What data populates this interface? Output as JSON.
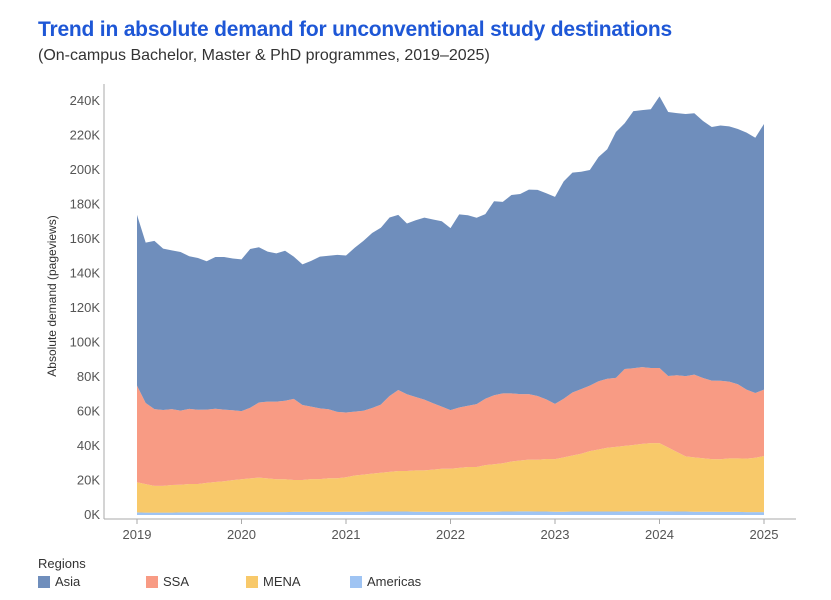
{
  "title": "Trend in absolute demand for unconventional study destinations",
  "subtitle": "(On-campus Bachelor, Master & PhD programmes, 2019–2025)",
  "legend_title": "Regions",
  "chart_data": {
    "type": "area",
    "stacked": true,
    "ylabel": "Absolute demand (pageviews)",
    "xlabel": "",
    "xlim": [
      2019,
      2025
    ],
    "ylim": [
      0,
      240000
    ],
    "x_ticks": [
      "2019",
      "2020",
      "2021",
      "2022",
      "2023",
      "2024",
      "2025"
    ],
    "y_ticks": [
      "0K",
      "20K",
      "40K",
      "60K",
      "80K",
      "100K",
      "120K",
      "140K",
      "160K",
      "180K",
      "200K",
      "220K",
      "240K"
    ],
    "y_tick_values": [
      0,
      20000,
      40000,
      60000,
      80000,
      100000,
      120000,
      140000,
      160000,
      180000,
      200000,
      220000,
      240000
    ],
    "x": [
      2019.0,
      2019.0833,
      2019.1667,
      2019.25,
      2019.3333,
      2019.4167,
      2019.5,
      2019.5833,
      2019.6667,
      2019.75,
      2019.8333,
      2019.9167,
      2020.0,
      2020.0833,
      2020.1667,
      2020.25,
      2020.3333,
      2020.4167,
      2020.5,
      2020.5833,
      2020.6667,
      2020.75,
      2020.8333,
      2020.9167,
      2021.0,
      2021.0833,
      2021.1667,
      2021.25,
      2021.3333,
      2021.4167,
      2021.5,
      2021.5833,
      2021.6667,
      2021.75,
      2021.8333,
      2021.9167,
      2022.0,
      2022.0833,
      2022.1667,
      2022.25,
      2022.3333,
      2022.4167,
      2022.5,
      2022.5833,
      2022.6667,
      2022.75,
      2022.8333,
      2022.9167,
      2023.0,
      2023.0833,
      2023.1667,
      2023.25,
      2023.3333,
      2023.4167,
      2023.5,
      2023.5833,
      2023.6667,
      2023.75,
      2023.8333,
      2023.9167,
      2024.0,
      2024.0833,
      2024.1667,
      2024.25,
      2024.3333,
      2024.4167,
      2024.5,
      2024.5833,
      2024.6667,
      2024.75,
      2024.8333,
      2024.9167,
      2025.0
    ],
    "series": [
      {
        "name": "Americas",
        "color": "#9fc4f3",
        "values": [
          1500,
          1400,
          1400,
          1400,
          1400,
          1500,
          1500,
          1500,
          1600,
          1600,
          1600,
          1700,
          1700,
          1700,
          1700,
          1700,
          1700,
          1700,
          1800,
          1800,
          1800,
          1800,
          1800,
          1800,
          1900,
          1900,
          1900,
          2000,
          2000,
          2000,
          2000,
          2000,
          1900,
          1900,
          1800,
          1800,
          1800,
          1800,
          1800,
          1800,
          1900,
          1900,
          2000,
          2000,
          2100,
          2100,
          2000,
          2000,
          1900,
          1900,
          2000,
          2000,
          2000,
          2000,
          2000,
          2000,
          2100,
          2100,
          2200,
          2200,
          2200,
          2100,
          2000,
          2000,
          1900,
          1900,
          1900,
          1800,
          1800,
          1800,
          1700,
          1700,
          1700
        ]
      },
      {
        "name": "MENA",
        "color": "#f8c96a",
        "values": [
          17500,
          16500,
          15500,
          15500,
          16000,
          16000,
          16500,
          16500,
          17000,
          17500,
          18000,
          18500,
          19000,
          19500,
          20000,
          19500,
          19000,
          19000,
          18500,
          18500,
          19000,
          19000,
          19500,
          19500,
          20000,
          21000,
          21500,
          22000,
          22500,
          23000,
          23500,
          23500,
          24000,
          24000,
          24500,
          25000,
          25000,
          25500,
          26000,
          26000,
          27000,
          27500,
          28000,
          29000,
          29500,
          30000,
          30000,
          30500,
          30500,
          31500,
          32500,
          33500,
          35000,
          36000,
          37000,
          37500,
          38000,
          38500,
          39000,
          39500,
          39500,
          37000,
          34500,
          32000,
          31500,
          31000,
          30500,
          30500,
          31000,
          31000,
          31000,
          31500,
          32500
        ]
      },
      {
        "name": "SSA",
        "color": "#f89b84",
        "values": [
          56000,
          47000,
          44500,
          44000,
          44000,
          43000,
          43500,
          43000,
          42500,
          42500,
          41500,
          40500,
          39500,
          41000,
          43500,
          44500,
          45000,
          45500,
          47000,
          43500,
          42000,
          41000,
          40000,
          38500,
          37500,
          37000,
          37000,
          38000,
          39500,
          44000,
          47000,
          44500,
          42500,
          41000,
          38500,
          36000,
          34000,
          35000,
          35500,
          36500,
          38500,
          40000,
          40500,
          39500,
          38500,
          38000,
          37000,
          34500,
          32000,
          34000,
          36500,
          37500,
          38000,
          39500,
          40000,
          40000,
          44500,
          44500,
          44500,
          43500,
          43500,
          41500,
          44500,
          46500,
          48000,
          46500,
          45500,
          45500,
          44500,
          43000,
          40000,
          37500,
          38500
        ]
      },
      {
        "name": "Asia",
        "color": "#6f8ebc",
        "values": [
          99000,
          93000,
          97500,
          93500,
          92000,
          92000,
          88500,
          88000,
          86000,
          88000,
          88500,
          88000,
          88000,
          92000,
          90000,
          87000,
          86000,
          87000,
          82500,
          81500,
          84500,
          88000,
          89000,
          91000,
          91000,
          95000,
          98500,
          101500,
          102500,
          103500,
          101500,
          99000,
          102500,
          105500,
          106500,
          107500,
          105500,
          112000,
          110500,
          108000,
          107000,
          112500,
          111000,
          115000,
          116000,
          118500,
          119500,
          119500,
          120000,
          126000,
          127500,
          126000,
          125000,
          130000,
          133000,
          142500,
          142500,
          149000,
          149000,
          150000,
          157500,
          153000,
          152000,
          152000,
          151500,
          149000,
          147000,
          148000,
          148000,
          148000,
          149000,
          148000,
          154000
        ]
      }
    ],
    "legend": [
      "Asia",
      "SSA",
      "MENA",
      "Americas"
    ]
  }
}
